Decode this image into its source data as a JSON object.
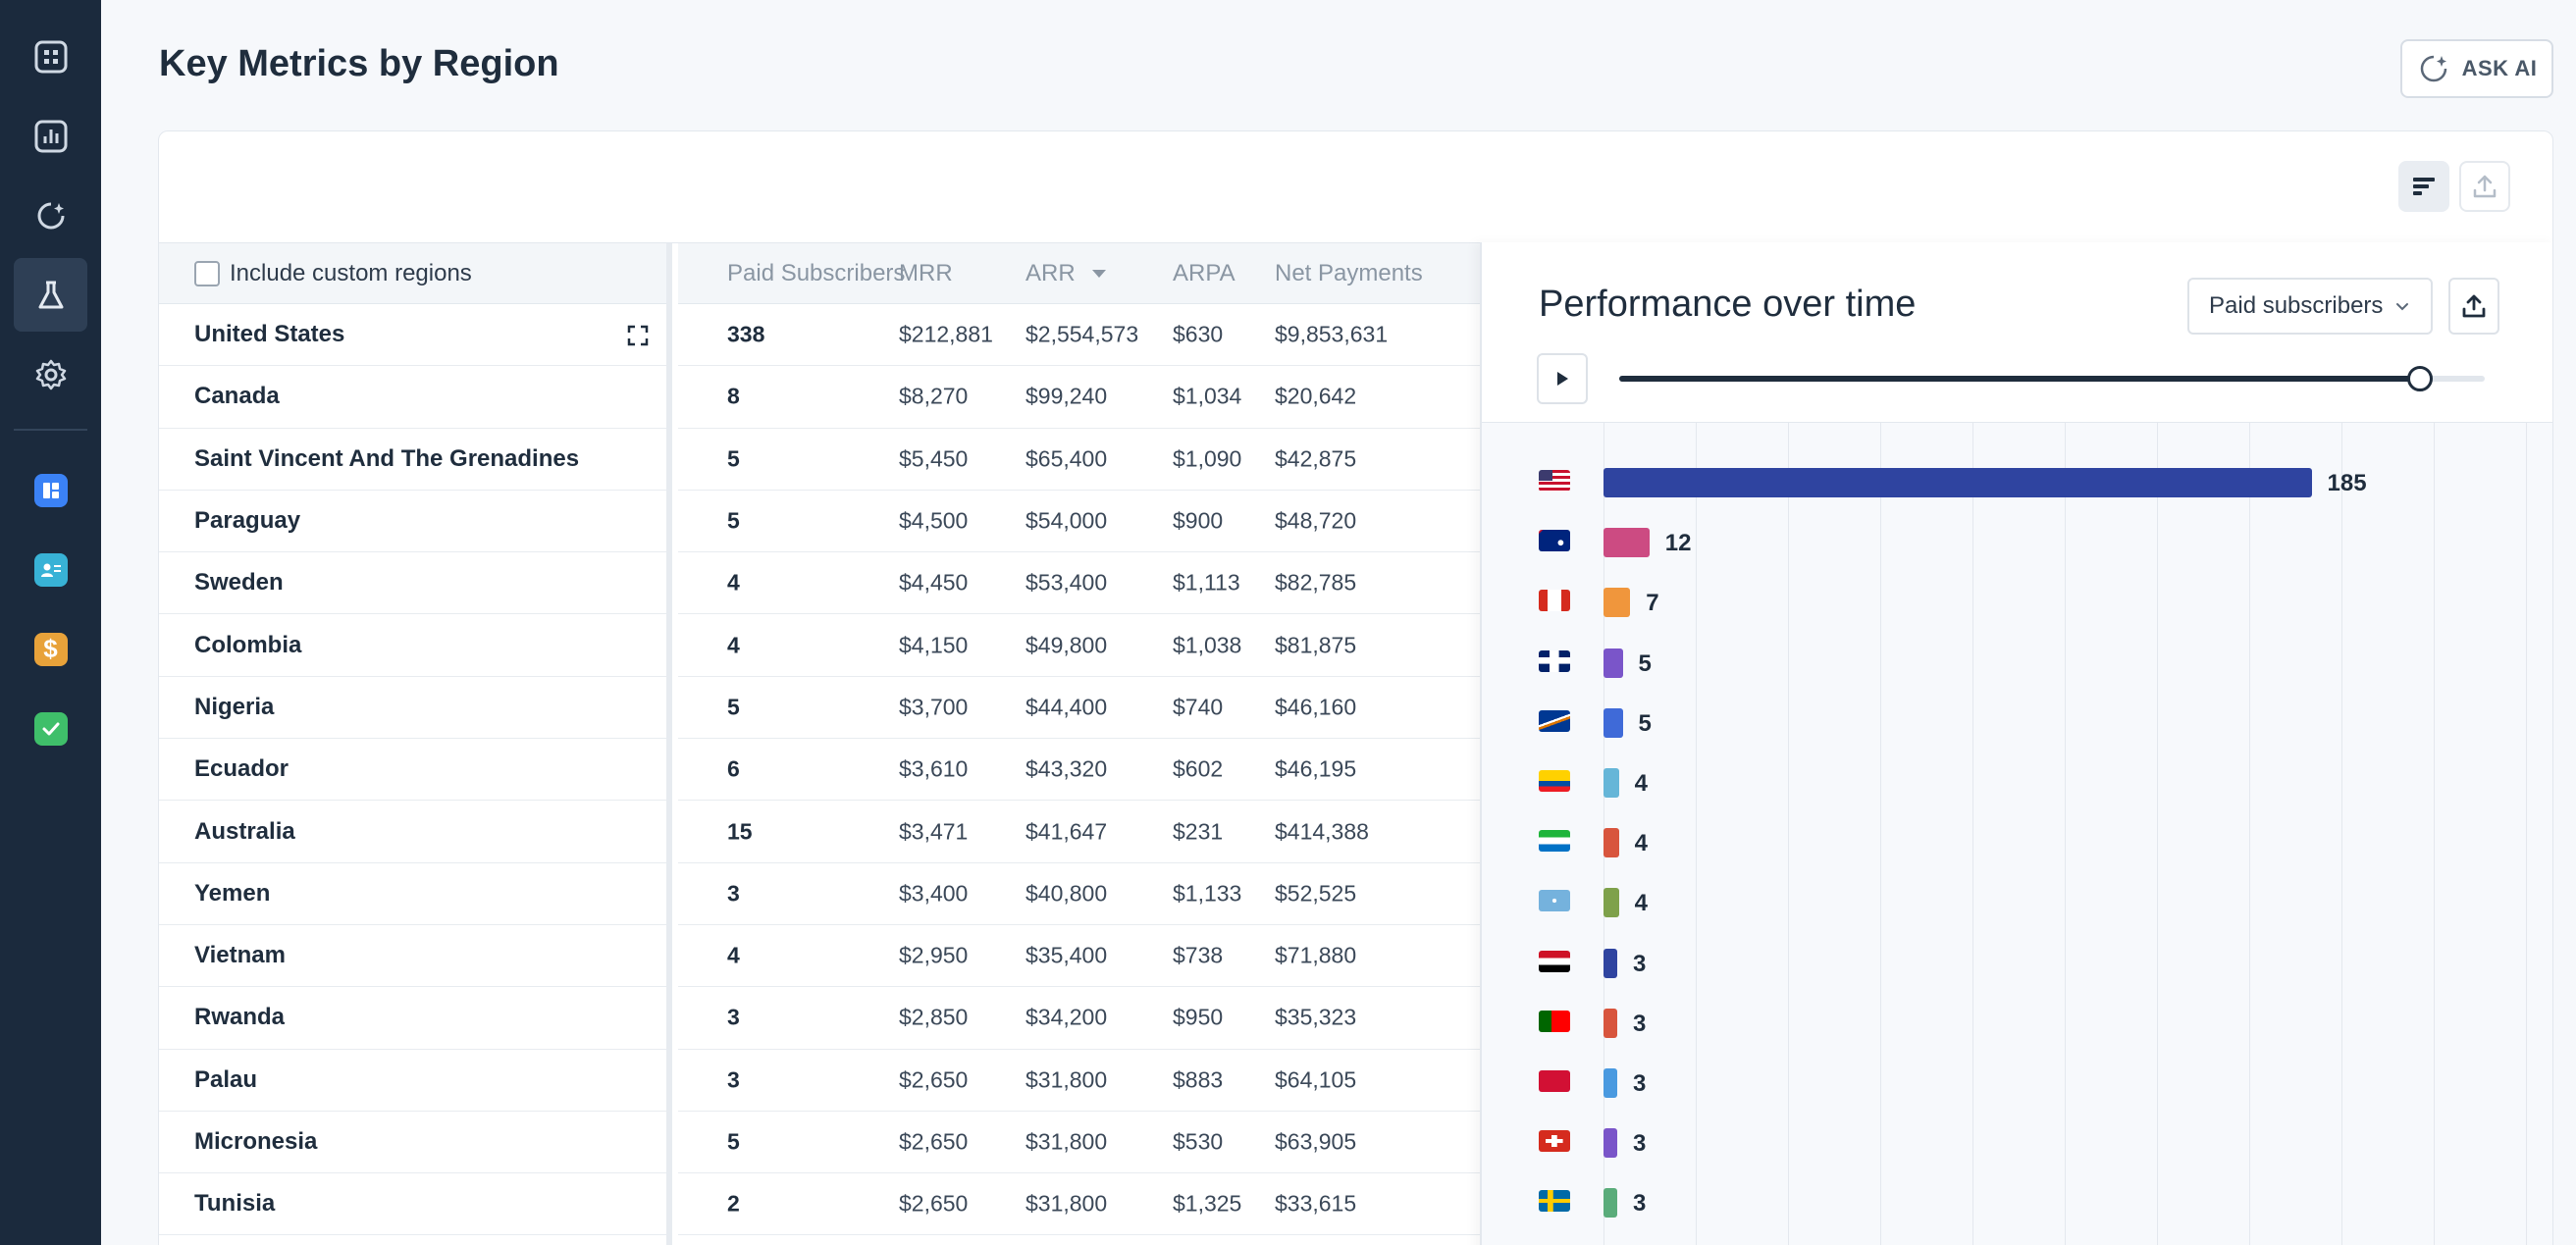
{
  "page": {
    "title": "Key Metrics by Region",
    "ask_ai_label": "ASK AI"
  },
  "sidebar": {
    "items": [
      {
        "name": "dashboard-icon"
      },
      {
        "name": "reports-icon"
      },
      {
        "name": "ai-spark-icon"
      },
      {
        "name": "labs-flask-icon",
        "active": true
      },
      {
        "name": "settings-gear-icon"
      }
    ],
    "apps": [
      {
        "name": "boards-app-icon",
        "color": "#3b82f6"
      },
      {
        "name": "contacts-app-icon",
        "color": "#38b2d6"
      },
      {
        "name": "billing-app-icon",
        "color": "#e8a23a"
      },
      {
        "name": "tasks-app-icon",
        "color": "#3fbf6a"
      }
    ]
  },
  "table": {
    "include_custom_label": "Include custom regions",
    "headers": {
      "paid": "Paid Subscribers",
      "mrr": "MRR",
      "arr": "ARR",
      "arpa": "ARPA",
      "net": "Net Payments"
    },
    "rows": [
      {
        "region": "United States",
        "paid": "338",
        "mrr": "$212,881",
        "arr": "$2,554,573",
        "arpa": "$630",
        "net": "$9,853,631"
      },
      {
        "region": "Canada",
        "paid": "8",
        "mrr": "$8,270",
        "arr": "$99,240",
        "arpa": "$1,034",
        "net": "$20,642"
      },
      {
        "region": "Saint Vincent And The Grenadines",
        "paid": "5",
        "mrr": "$5,450",
        "arr": "$65,400",
        "arpa": "$1,090",
        "net": "$42,875"
      },
      {
        "region": "Paraguay",
        "paid": "5",
        "mrr": "$4,500",
        "arr": "$54,000",
        "arpa": "$900",
        "net": "$48,720"
      },
      {
        "region": "Sweden",
        "paid": "4",
        "mrr": "$4,450",
        "arr": "$53,400",
        "arpa": "$1,113",
        "net": "$82,785"
      },
      {
        "region": "Colombia",
        "paid": "4",
        "mrr": "$4,150",
        "arr": "$49,800",
        "arpa": "$1,038",
        "net": "$81,875"
      },
      {
        "region": "Nigeria",
        "paid": "5",
        "mrr": "$3,700",
        "arr": "$44,400",
        "arpa": "$740",
        "net": "$46,160"
      },
      {
        "region": "Ecuador",
        "paid": "6",
        "mrr": "$3,610",
        "arr": "$43,320",
        "arpa": "$602",
        "net": "$46,195"
      },
      {
        "region": "Australia",
        "paid": "15",
        "mrr": "$3,471",
        "arr": "$41,647",
        "arpa": "$231",
        "net": "$414,388"
      },
      {
        "region": "Yemen",
        "paid": "3",
        "mrr": "$3,400",
        "arr": "$40,800",
        "arpa": "$1,133",
        "net": "$52,525"
      },
      {
        "region": "Vietnam",
        "paid": "4",
        "mrr": "$2,950",
        "arr": "$35,400",
        "arpa": "$738",
        "net": "$71,880"
      },
      {
        "region": "Rwanda",
        "paid": "3",
        "mrr": "$2,850",
        "arr": "$34,200",
        "arpa": "$950",
        "net": "$35,323"
      },
      {
        "region": "Palau",
        "paid": "3",
        "mrr": "$2,650",
        "arr": "$31,800",
        "arpa": "$883",
        "net": "$64,105"
      },
      {
        "region": "Micronesia",
        "paid": "5",
        "mrr": "$2,650",
        "arr": "$31,800",
        "arpa": "$530",
        "net": "$63,905"
      },
      {
        "region": "Tunisia",
        "paid": "2",
        "mrr": "$2,650",
        "arr": "$31,800",
        "arpa": "$1,325",
        "net": "$33,615"
      }
    ]
  },
  "panel": {
    "title": "Performance over time",
    "metric_select": "Paid subscribers",
    "slider_progress": 0.925
  },
  "chart_data": {
    "type": "bar",
    "orientation": "horizontal",
    "xlim": [
      0,
      200
    ],
    "grid": true,
    "categories": [
      "US",
      "AU",
      "CA",
      "GB",
      "MH",
      "EC",
      "SL",
      "FM",
      "EG",
      "PT",
      "MV",
      "CH",
      "SE"
    ],
    "values": [
      185,
      12,
      7,
      5,
      5,
      4,
      4,
      4,
      3,
      3,
      3,
      3,
      3
    ],
    "value_labels": [
      "185",
      "12",
      "7",
      "5",
      "5",
      "4",
      "4",
      "4",
      "3",
      "3",
      "3",
      "3",
      "3"
    ],
    "colors": [
      "#2f44a0",
      "#cc4b82",
      "#f0963c",
      "#7a55c9",
      "#3f6ad8",
      "#66b6d8",
      "#d8553d",
      "#7ea14a",
      "#2f44a0",
      "#d8553d",
      "#4a9ae0",
      "#7a55c9",
      "#5aac7a"
    ]
  }
}
